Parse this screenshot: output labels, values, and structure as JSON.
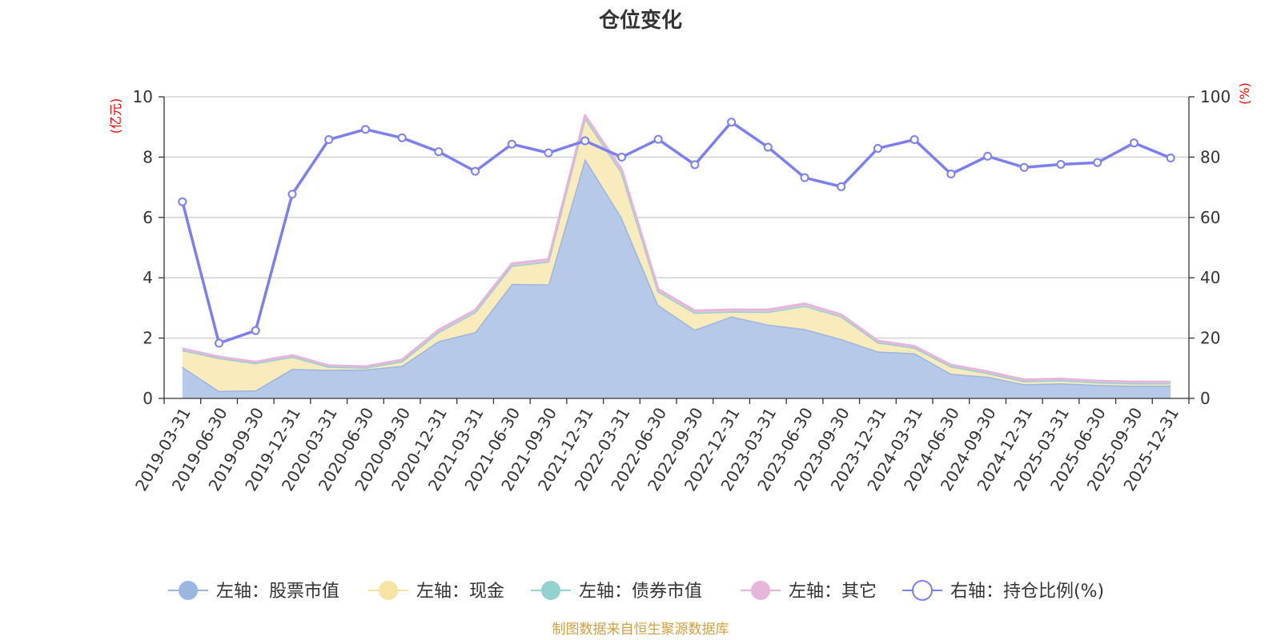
{
  "chart_data": {
    "type": "area",
    "title": "仓位变化",
    "left_axis": {
      "unit_label": "(亿元)",
      "ylim": [
        0,
        10
      ],
      "ticks": [
        "0",
        "2",
        "4",
        "6",
        "8",
        "10"
      ]
    },
    "right_axis": {
      "unit_label": "(%)",
      "ylim": [
        0,
        100
      ],
      "ticks": [
        "0",
        "20",
        "40",
        "60",
        "80",
        "100"
      ]
    },
    "unit_color": "#ff0000",
    "grid": true,
    "legend_position": "bottom",
    "categories": [
      "2019-03-31",
      "2019-06-30",
      "2019-09-30",
      "2019-12-31",
      "2020-03-31",
      "2020-06-30",
      "2020-09-30",
      "2020-12-31",
      "2021-03-31",
      "2021-06-30",
      "2021-09-30",
      "2021-12-31",
      "2022-03-31",
      "2022-06-30",
      "2022-09-30",
      "2022-12-31",
      "2023-03-31",
      "2023-06-30",
      "2023-09-30",
      "2023-12-31",
      "2024-03-31",
      "2024-06-30",
      "2024-09-30",
      "2024-12-31",
      "2025-03-31",
      "2025-06-30",
      "2025-09-30",
      "2025-12-31"
    ],
    "series": [
      {
        "name": "左轴：股票市值",
        "axis": "left",
        "stacked": true,
        "color": "#9bb6e0",
        "fill": "#b6c9e8",
        "values": [
          1.05,
          0.25,
          0.27,
          0.98,
          0.95,
          0.96,
          1.08,
          1.9,
          2.2,
          3.8,
          3.78,
          7.95,
          6.0,
          3.1,
          2.28,
          2.72,
          2.45,
          2.3,
          1.97,
          1.56,
          1.5,
          0.82,
          0.72,
          0.47,
          0.5,
          0.45,
          0.42,
          0.42
        ]
      },
      {
        "name": "左轴：现金",
        "axis": "left",
        "stacked": true,
        "color": "#f7e4a3",
        "fill": "#f9ebbb",
        "values": [
          0.55,
          1.09,
          0.9,
          0.4,
          0.1,
          0.06,
          0.15,
          0.3,
          0.66,
          0.6,
          0.76,
          1.35,
          1.5,
          0.45,
          0.56,
          0.16,
          0.42,
          0.77,
          0.75,
          0.3,
          0.18,
          0.24,
          0.12,
          0.1,
          0.1,
          0.08,
          0.08,
          0.08
        ]
      },
      {
        "name": "左轴：债券市值",
        "axis": "left",
        "stacked": true,
        "color": "#93d2cf",
        "fill": "#93d2cf",
        "values": [
          0,
          0,
          0,
          0,
          0,
          0,
          0,
          0,
          0,
          0,
          0,
          0,
          0,
          0,
          0,
          0,
          0,
          0,
          0,
          0,
          0,
          0,
          0,
          0,
          0,
          0,
          0,
          0
        ]
      },
      {
        "name": "左轴：其它",
        "axis": "left",
        "stacked": true,
        "color": "#e6b5da",
        "fill": "#edc7e4",
        "values": [
          0.05,
          0.04,
          0.04,
          0.05,
          0.04,
          0.04,
          0.05,
          0.07,
          0.07,
          0.07,
          0.07,
          0.08,
          0.1,
          0.07,
          0.07,
          0.06,
          0.07,
          0.07,
          0.06,
          0.05,
          0.05,
          0.05,
          0.05,
          0.05,
          0.05,
          0.05,
          0.05,
          0.05
        ]
      },
      {
        "name": "右轴：持仓比例(%)",
        "axis": "right",
        "stacked": false,
        "color": "#7b7ff0",
        "values": [
          65.2,
          18.3,
          22.5,
          67.7,
          85.8,
          89.2,
          86.4,
          81.8,
          75.3,
          84.3,
          81.4,
          85.4,
          80.0,
          85.9,
          77.5,
          91.6,
          83.3,
          73.2,
          70.2,
          82.9,
          85.8,
          74.4,
          80.3,
          76.6,
          77.6,
          78.2,
          84.7,
          79.7
        ]
      }
    ]
  },
  "footer": {
    "source_text": "制图数据来自恒生聚源数据库",
    "source_color": "#d1a042"
  }
}
